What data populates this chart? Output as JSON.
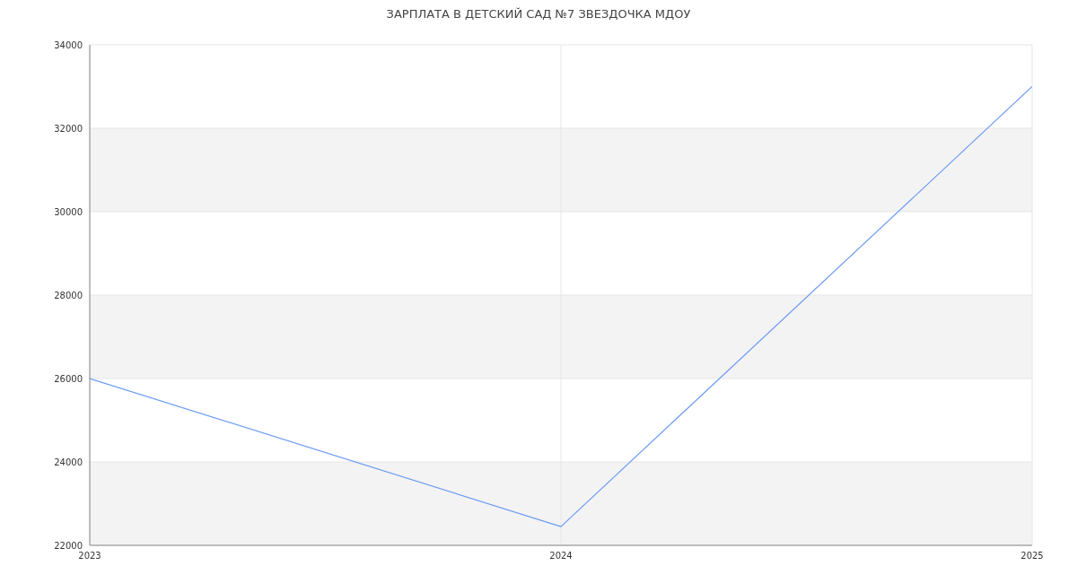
{
  "chart_data": {
    "type": "line",
    "title": "ЗАРПЛАТА В ДЕТСКИЙ САД №7 ЗВЕЗДОЧКА МДОУ",
    "x": [
      2023,
      2024,
      2025
    ],
    "series": [
      {
        "color": "#6d9bf5",
        "values": [
          26000,
          22450,
          33000
        ]
      }
    ],
    "xlim": [
      2023,
      2025
    ],
    "xticks": [
      2023,
      2024,
      2025
    ],
    "ylim": [
      22000,
      34000
    ],
    "yticks": [
      22000,
      24000,
      26000,
      28000,
      30000,
      32000,
      34000
    ],
    "grid": true,
    "marker": "none",
    "line_style": "solid",
    "legend": false
  }
}
